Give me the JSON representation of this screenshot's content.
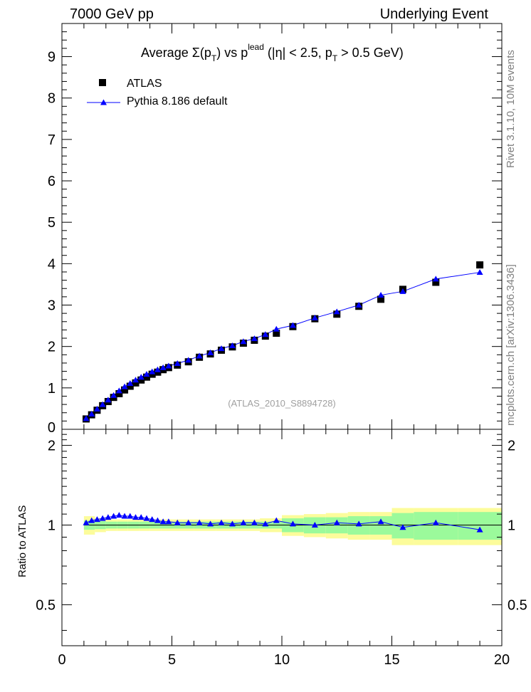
{
  "header": {
    "left": "7000 GeV pp",
    "right": "Underlying Event"
  },
  "side_labels": {
    "rivet": "Rivet 3.1.10, 10M events",
    "mcplots": "mcplots.cern.ch [arXiv:1306.3436]"
  },
  "chart_data": {
    "type": "scatter",
    "title": "Average Σ(pT) vs pTlead (|η| < 2.5, pT > 0.5 GeV)",
    "title_parts": {
      "prefix": "Average ",
      "sigma": "Σ(p",
      "sub_t": "T",
      "vs": ") vs p",
      "sup": "lead",
      "rest1": " (|η| < 2.5, p",
      "rest2": " > 0.5 GeV)"
    },
    "analysis_tag": "(ATLAS_2010_S8894728)",
    "legend": {
      "position": "top-left",
      "entries": [
        "ATLAS",
        "Pythia 8.186 default"
      ]
    },
    "colors": {
      "atlas": "#000000",
      "pythia": "#0000ff",
      "band_inner": "#9bfa9b",
      "band_outer": "#fcfc9b"
    },
    "xlim": [
      0,
      20
    ],
    "ylim": [
      0,
      9.8
    ],
    "x_ticks": [
      0,
      5,
      10,
      15,
      20
    ],
    "y_ticks": [
      1,
      2,
      3,
      4,
      5,
      6,
      7,
      8,
      9
    ],
    "y_tick_labels": [
      "1",
      "2",
      "3",
      "4",
      "5",
      "6",
      "7",
      "8",
      "9"
    ],
    "x_tick_labels": [
      "0",
      "5",
      "10",
      "15",
      "20"
    ],
    "y_bottom_label": "0",
    "atlas_x": [
      1.0,
      1.25,
      1.5,
      1.75,
      2.0,
      2.25,
      2.5,
      2.75,
      3.0,
      3.25,
      3.5,
      3.75,
      4.0,
      4.25,
      4.5,
      4.75,
      5.0,
      5.5,
      6.0,
      6.5,
      7.0,
      7.5,
      8.0,
      8.5,
      9.0,
      9.5,
      10.0,
      11.0,
      12.0,
      13.0,
      14.0,
      15.0,
      16.5,
      18.5
    ],
    "x_centers": [
      1.1,
      1.35,
      1.6,
      1.85,
      2.1,
      2.35,
      2.6,
      2.85,
      3.1,
      3.35,
      3.6,
      3.85,
      4.1,
      4.35,
      4.6,
      4.85,
      5.25,
      5.75,
      6.25,
      6.75,
      7.25,
      7.75,
      8.25,
      8.75,
      9.25,
      9.75,
      10.5,
      11.5,
      12.5,
      13.5,
      14.5,
      15.5,
      17.0,
      19.0
    ],
    "atlas_y": [
      0.25,
      0.35,
      0.46,
      0.57,
      0.67,
      0.77,
      0.86,
      0.95,
      1.04,
      1.12,
      1.19,
      1.26,
      1.33,
      1.38,
      1.44,
      1.49,
      1.55,
      1.63,
      1.74,
      1.82,
      1.91,
      1.99,
      2.08,
      2.15,
      2.25,
      2.32,
      2.48,
      2.67,
      2.78,
      2.97,
      3.14,
      3.38,
      3.55,
      3.97
    ],
    "pythia_y": [
      0.26,
      0.37,
      0.49,
      0.6,
      0.71,
      0.82,
      0.93,
      1.03,
      1.11,
      1.19,
      1.26,
      1.33,
      1.39,
      1.44,
      1.49,
      1.53,
      1.59,
      1.67,
      1.77,
      1.85,
      1.95,
      2.02,
      2.12,
      2.19,
      2.29,
      2.42,
      2.51,
      2.69,
      2.84,
      3.0,
      3.24,
      3.33,
      3.63,
      3.79
    ],
    "ratio": {
      "ylabel": "Ratio to ATLAS",
      "ylim": [
        0.35,
        2.3
      ],
      "y_ticks": [
        0.5,
        1,
        2
      ],
      "y_tick_labels": [
        "0.5",
        "1",
        "2"
      ],
      "values": [
        1.02,
        1.04,
        1.05,
        1.06,
        1.07,
        1.08,
        1.09,
        1.08,
        1.08,
        1.07,
        1.07,
        1.06,
        1.05,
        1.04,
        1.03,
        1.03,
        1.02,
        1.02,
        1.02,
        1.01,
        1.02,
        1.01,
        1.02,
        1.02,
        1.01,
        1.04,
        1.01,
        1.0,
        1.02,
        1.01,
        1.03,
        0.98,
        1.02,
        0.96
      ],
      "band_edges": [
        1.0,
        1.5,
        2.0,
        2.5,
        3.0,
        3.5,
        4.0,
        4.5,
        5.0,
        6.0,
        7.0,
        8.0,
        9.0,
        10.0,
        11.0,
        12.0,
        13.0,
        14.0,
        15.0,
        16.0,
        18.0,
        20.0
      ],
      "band_stat": [
        0.04,
        0.035,
        0.03,
        0.03,
        0.03,
        0.03,
        0.03,
        0.03,
        0.03,
        0.03,
        0.03,
        0.03,
        0.03,
        0.06,
        0.07,
        0.07,
        0.08,
        0.08,
        0.11,
        0.12,
        0.12
      ],
      "band_total": [
        0.08,
        0.06,
        0.05,
        0.05,
        0.05,
        0.05,
        0.05,
        0.05,
        0.05,
        0.05,
        0.05,
        0.05,
        0.06,
        0.09,
        0.1,
        0.11,
        0.12,
        0.12,
        0.16,
        0.16,
        0.16
      ]
    }
  }
}
